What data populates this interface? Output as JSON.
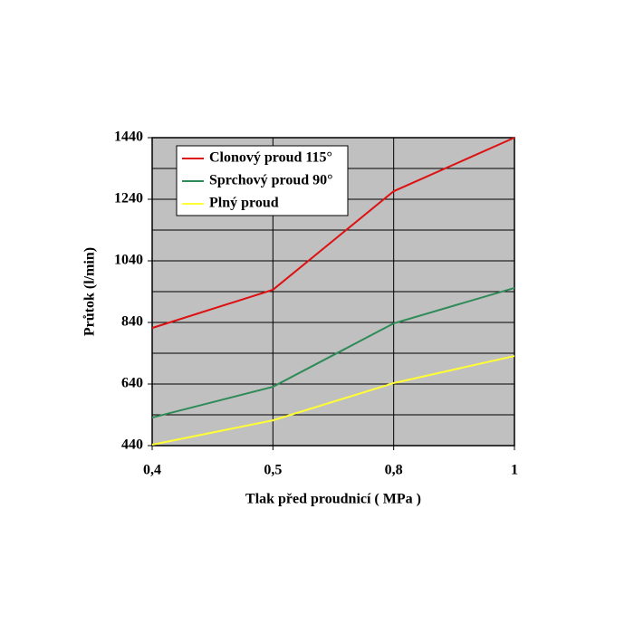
{
  "chart_data": {
    "type": "line",
    "categories": [
      "0,4",
      "0,5",
      "0,8",
      "1"
    ],
    "series": [
      {
        "name": "Clonový proud 115°",
        "color": "#dd1111",
        "values": [
          822,
          946,
          1266,
          1440
        ]
      },
      {
        "name": "Sprchový proud 90°",
        "color": "#2e8b57",
        "values": [
          531,
          631,
          837,
          952
        ]
      },
      {
        "name": "Plný proud",
        "color": "#ffff33",
        "values": [
          443,
          522,
          643,
          731
        ]
      }
    ],
    "ylim": [
      440,
      1440
    ],
    "yticks": [
      440,
      640,
      840,
      1040,
      1240,
      1440
    ],
    "minor_yticks": [
      540,
      740,
      940,
      1140,
      1340
    ],
    "xlabel": "Tlak před proudnicí  ( MPa )",
    "ylabel": "Průtok (l/min)",
    "grid": true,
    "legend": "upper left"
  }
}
